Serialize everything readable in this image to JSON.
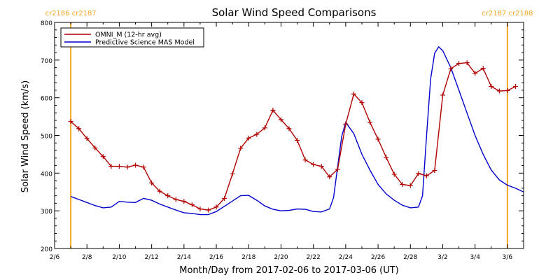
{
  "chart_data": {
    "type": "line",
    "title": "Solar Wind Speed Comparisons",
    "xlabel": "Month/Day from 2017-02-06 to 2017-03-06 (UT)",
    "ylabel": "Solar Wind Speed (km/s)",
    "xlim": [
      "2017-02-06",
      "2017-03-07"
    ],
    "ylim": [
      200,
      800
    ],
    "x_tick_labels": [
      "2/6",
      "2/8",
      "2/10",
      "2/12",
      "2/14",
      "2/16",
      "2/18",
      "2/20",
      "2/22",
      "2/24",
      "2/26",
      "2/28",
      "3/2",
      "3/4",
      "3/6"
    ],
    "y_tick_labels": [
      "200",
      "300",
      "400",
      "500",
      "600",
      "700",
      "800"
    ],
    "rotation_markers": [
      {
        "x": "2017-02-07",
        "label": "cr2186 cr2187",
        "color": "#f5a623"
      },
      {
        "x": "2017-03-06",
        "label": "cr2187 cr2188",
        "color": "#f5a623"
      }
    ],
    "legend": {
      "placement": "top-left"
    },
    "series": [
      {
        "name": "OMNI_M (12-hr avg)",
        "color": "#b00000",
        "markers": true,
        "points": [
          [
            "2017-02-07 00:00",
            537
          ],
          [
            "2017-02-07 12:00",
            518
          ],
          [
            "2017-02-08 00:00",
            492
          ],
          [
            "2017-02-08 12:00",
            467
          ],
          [
            "2017-02-09 00:00",
            444
          ],
          [
            "2017-02-09 12:00",
            418
          ],
          [
            "2017-02-10 00:00",
            418
          ],
          [
            "2017-02-10 12:00",
            416
          ],
          [
            "2017-02-11 00:00",
            421
          ],
          [
            "2017-02-11 12:00",
            416
          ],
          [
            "2017-02-12 00:00",
            374
          ],
          [
            "2017-02-12 12:00",
            352
          ],
          [
            "2017-02-13 00:00",
            340
          ],
          [
            "2017-02-13 12:00",
            330
          ],
          [
            "2017-02-14 00:00",
            325
          ],
          [
            "2017-02-14 12:00",
            316
          ],
          [
            "2017-02-15 00:00",
            305
          ],
          [
            "2017-02-15 12:00",
            302
          ],
          [
            "2017-02-16 00:00",
            310
          ],
          [
            "2017-02-16 12:00",
            333
          ],
          [
            "2017-02-17 00:00",
            398
          ],
          [
            "2017-02-17 12:00",
            466
          ],
          [
            "2017-02-18 00:00",
            493
          ],
          [
            "2017-02-18 12:00",
            503
          ],
          [
            "2017-02-19 00:00",
            520
          ],
          [
            "2017-02-19 12:00",
            567
          ],
          [
            "2017-02-20 00:00",
            542
          ],
          [
            "2017-02-20 12:00",
            518
          ],
          [
            "2017-02-21 00:00",
            487
          ],
          [
            "2017-02-21 12:00",
            435
          ],
          [
            "2017-02-22 00:00",
            423
          ],
          [
            "2017-02-22 12:00",
            418
          ],
          [
            "2017-02-23 00:00",
            390
          ],
          [
            "2017-02-23 12:00",
            410
          ],
          [
            "2017-02-24 00:00",
            530
          ],
          [
            "2017-02-24 12:00",
            610
          ],
          [
            "2017-02-25 00:00",
            587
          ],
          [
            "2017-02-25 12:00",
            535
          ],
          [
            "2017-02-26 00:00",
            490
          ],
          [
            "2017-02-26 12:00",
            442
          ],
          [
            "2017-02-27 00:00",
            397
          ],
          [
            "2017-02-27 12:00",
            370
          ],
          [
            "2017-02-28 00:00",
            367
          ],
          [
            "2017-02-28 12:00",
            399
          ],
          [
            "2017-03-01 00:00",
            393
          ],
          [
            "2017-03-01 12:00",
            407
          ],
          [
            "2017-03-02 00:00",
            607
          ],
          [
            "2017-03-02 12:00",
            677
          ],
          [
            "2017-03-03 00:00",
            691
          ],
          [
            "2017-03-03 12:00",
            693
          ],
          [
            "2017-03-04 00:00",
            665
          ],
          [
            "2017-03-04 12:00",
            678
          ],
          [
            "2017-03-05 00:00",
            630
          ],
          [
            "2017-03-05 12:00",
            618
          ],
          [
            "2017-03-06 00:00",
            619
          ],
          [
            "2017-03-06 12:00",
            630
          ]
        ]
      },
      {
        "name": "Predictive Science MAS Model",
        "color": "#0000cc",
        "markers": false,
        "points": [
          [
            "2017-02-07 00:00",
            338
          ],
          [
            "2017-02-07 12:00",
            330
          ],
          [
            "2017-02-08 00:00",
            322
          ],
          [
            "2017-02-08 12:00",
            314
          ],
          [
            "2017-02-09 00:00",
            308
          ],
          [
            "2017-02-09 12:00",
            310
          ],
          [
            "2017-02-10 00:00",
            325
          ],
          [
            "2017-02-10 12:00",
            323
          ],
          [
            "2017-02-11 00:00",
            322
          ],
          [
            "2017-02-11 12:00",
            333
          ],
          [
            "2017-02-12 00:00",
            328
          ],
          [
            "2017-02-12 12:00",
            318
          ],
          [
            "2017-02-13 00:00",
            310
          ],
          [
            "2017-02-13 12:00",
            302
          ],
          [
            "2017-02-14 00:00",
            295
          ],
          [
            "2017-02-14 12:00",
            293
          ],
          [
            "2017-02-15 00:00",
            290
          ],
          [
            "2017-02-15 12:00",
            290
          ],
          [
            "2017-02-16 00:00",
            298
          ],
          [
            "2017-02-16 12:00",
            312
          ],
          [
            "2017-02-17 00:00",
            326
          ],
          [
            "2017-02-17 12:00",
            340
          ],
          [
            "2017-02-18 00:00",
            341
          ],
          [
            "2017-02-18 12:00",
            328
          ],
          [
            "2017-02-19 00:00",
            313
          ],
          [
            "2017-02-19 12:00",
            304
          ],
          [
            "2017-02-20 00:00",
            300
          ],
          [
            "2017-02-20 12:00",
            301
          ],
          [
            "2017-02-21 00:00",
            305
          ],
          [
            "2017-02-21 12:00",
            304
          ],
          [
            "2017-02-22 00:00",
            298
          ],
          [
            "2017-02-22 12:00",
            297
          ],
          [
            "2017-02-23 00:00",
            305
          ],
          [
            "2017-02-23 06:00",
            335
          ],
          [
            "2017-02-23 18:00",
            497
          ],
          [
            "2017-02-24 00:00",
            535
          ],
          [
            "2017-02-24 12:00",
            505
          ],
          [
            "2017-02-25 00:00",
            450
          ],
          [
            "2017-02-25 12:00",
            408
          ],
          [
            "2017-02-26 00:00",
            370
          ],
          [
            "2017-02-26 12:00",
            345
          ],
          [
            "2017-02-27 00:00",
            328
          ],
          [
            "2017-02-27 12:00",
            315
          ],
          [
            "2017-02-28 00:00",
            308
          ],
          [
            "2017-02-28 12:00",
            310
          ],
          [
            "2017-02-28 18:00",
            340
          ],
          [
            "2017-03-01 00:00",
            500
          ],
          [
            "2017-03-01 06:00",
            650
          ],
          [
            "2017-03-01 12:00",
            718
          ],
          [
            "2017-03-01 18:00",
            735
          ],
          [
            "2017-03-02 00:00",
            725
          ],
          [
            "2017-03-02 12:00",
            680
          ],
          [
            "2017-03-03 00:00",
            620
          ],
          [
            "2017-03-03 12:00",
            560
          ],
          [
            "2017-03-04 00:00",
            500
          ],
          [
            "2017-03-04 12:00",
            450
          ],
          [
            "2017-03-05 00:00",
            408
          ],
          [
            "2017-03-05 12:00",
            382
          ],
          [
            "2017-03-06 00:00",
            368
          ],
          [
            "2017-03-06 12:00",
            360
          ],
          [
            "2017-03-07 00:00",
            350
          ]
        ]
      }
    ]
  }
}
